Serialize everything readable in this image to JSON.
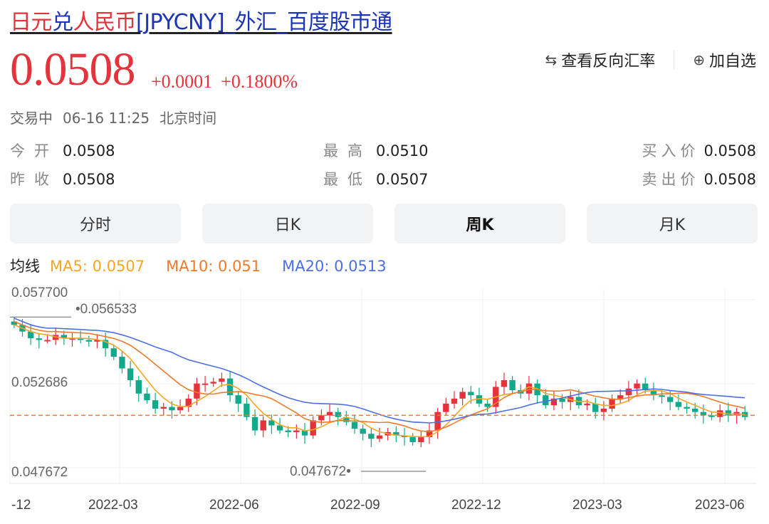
{
  "header": {
    "title_part1": "日元",
    "title_part2": "兑",
    "title_part3": "人民币",
    "title_part4": "[JPYCNY]_外汇_百度股市通",
    "price": "0.0508",
    "change_abs": "+0.0001",
    "change_pct": "+0.1800%",
    "reverse_label": "查看反向汇率",
    "add_label": "加自选",
    "reverse_icon": "swap-arrows-icon",
    "add_icon": "plus-circle-icon"
  },
  "status": {
    "state": "交易中",
    "date": "06-16 11:25",
    "tz": "北京时间"
  },
  "quote": {
    "open_label": "今开",
    "open_value": "0.0508",
    "high_label": "最高",
    "high_value": "0.0510",
    "bid_label": "买入价",
    "bid_value": "0.0508",
    "prev_label": "昨收",
    "prev_value": "0.0508",
    "low_label": "最低",
    "low_value": "0.0507",
    "ask_label": "卖出价",
    "ask_value": "0.0508"
  },
  "tabs": [
    {
      "label": "分时",
      "active": false
    },
    {
      "label": "日K",
      "active": false
    },
    {
      "label": "周K",
      "active": true
    },
    {
      "label": "月K",
      "active": false
    }
  ],
  "ma": {
    "label": "均线",
    "ma5": "MA5: 0.0507",
    "ma10": "MA10: 0.051",
    "ma20": "MA20: 0.0513"
  },
  "colors": {
    "up": "#e5323b",
    "down": "#12a98b",
    "ma5": "#f5a623",
    "ma10": "#f07a2c",
    "ma20": "#4b6fe6",
    "ref_line": "#f07a2c"
  },
  "chart_data": {
    "type": "candlestick",
    "x_ticks": [
      "-12",
      "2022-03",
      "2022-06",
      "2022-09",
      "2022-12",
      "2023-03",
      "2023-06"
    ],
    "y_labels": [
      "0.057700",
      "0.052686",
      "0.047672"
    ],
    "y_range": [
      0.047672,
      0.0577
    ],
    "current_price": 0.0508,
    "max_label": "0.056533",
    "min_label": "0.047672",
    "closes": [
      0.0562,
      0.0558,
      0.0554,
      0.0553,
      0.0553,
      0.0556,
      0.0554,
      0.0554,
      0.0553,
      0.0552,
      0.0553,
      0.0548,
      0.0543,
      0.0536,
      0.0529,
      0.0521,
      0.0517,
      0.0512,
      0.0513,
      0.0511,
      0.0513,
      0.0518,
      0.0527,
      0.0527,
      0.0528,
      0.053,
      0.052,
      0.0515,
      0.0507,
      0.0499,
      0.0505,
      0.0502,
      0.0499,
      0.0498,
      0.0499,
      0.0496,
      0.0505,
      0.0508,
      0.051,
      0.0507,
      0.0504,
      0.05,
      0.0497,
      0.0494,
      0.0496,
      0.0498,
      0.0496,
      0.0495,
      0.0492,
      0.0495,
      0.0499,
      0.051,
      0.0515,
      0.0518,
      0.0522,
      0.052,
      0.0515,
      0.0513,
      0.0525,
      0.0529,
      0.0523,
      0.0521,
      0.0527,
      0.052,
      0.0514,
      0.0518,
      0.0516,
      0.0519,
      0.0514,
      0.0515,
      0.051,
      0.0512,
      0.0518,
      0.052,
      0.0524,
      0.0527,
      0.0523,
      0.052,
      0.0519,
      0.0516,
      0.0513,
      0.0512,
      0.051,
      0.0508,
      0.0507,
      0.0511,
      0.0508,
      0.051,
      0.0507
    ]
  }
}
